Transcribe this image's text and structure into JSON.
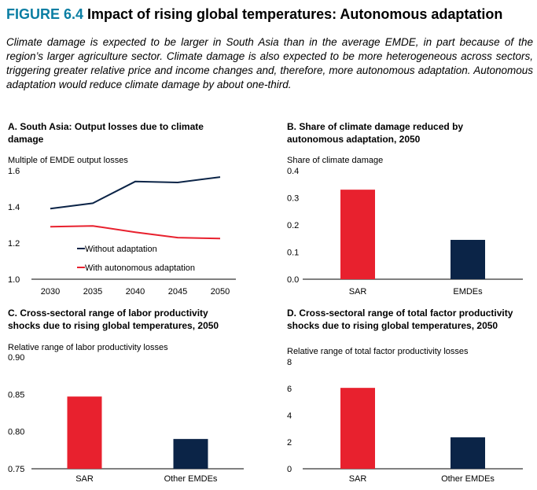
{
  "figure": {
    "number": "FIGURE 6.4",
    "title": " Impact of rising global temperatures: Autonomous adaptation",
    "subtitle": "Climate damage is expected to be larger in South Asia than in the average EMDE, in part because of the region’s larger agriculture sector. Climate damage is also expected to be more heterogeneous across sectors, triggering greater relative price and income changes and, therefore, more autonomous adaptation. Autonomous adaptation would reduce climate damage by about one-third."
  },
  "colors": {
    "navy": "#0b2447",
    "red": "#e8212e",
    "axis": "#000000"
  },
  "chart_data": [
    {
      "id": "A",
      "type": "line",
      "title_lines": [
        "A. South Asia: Output losses due to climate",
        "damage"
      ],
      "ylabel": "Multiple of EMDE output losses",
      "x": [
        "2030",
        "2035",
        "2040",
        "2045",
        "2050"
      ],
      "ylim": [
        1.0,
        1.6
      ],
      "yticks": [
        "1.0",
        "1.2",
        "1.4",
        "1.6"
      ],
      "series": [
        {
          "name": "Without adaptation",
          "color": "#0b2447",
          "values": [
            1.39,
            1.42,
            1.54,
            1.535,
            1.565
          ]
        },
        {
          "name": "With autonomous adaptation",
          "color": "#e8212e",
          "values": [
            1.29,
            1.295,
            1.26,
            1.23,
            1.225
          ]
        }
      ],
      "legend": "bottom-center",
      "grid": false
    },
    {
      "id": "B",
      "type": "bar",
      "title_lines": [
        "B. Share of climate damage reduced by",
        "autonomous adaptation, 2050"
      ],
      "ylabel": "Share of climate damage",
      "categories": [
        "SAR",
        "EMDEs"
      ],
      "values": [
        0.33,
        0.145
      ],
      "colors": [
        "#e8212e",
        "#0b2447"
      ],
      "ylim": [
        0,
        0.4
      ],
      "yticks": [
        "0.0",
        "0.1",
        "0.2",
        "0.3",
        "0.4"
      ],
      "grid": false
    },
    {
      "id": "C",
      "type": "bar",
      "title_lines": [
        "C. Cross-sectoral range of labor productivity",
        "shocks due to rising global temperatures, 2050"
      ],
      "ylabel": "Relative range of labor productivity losses",
      "categories": [
        "SAR",
        "Other EMDEs"
      ],
      "values": [
        0.847,
        0.79
      ],
      "colors": [
        "#e8212e",
        "#0b2447"
      ],
      "ylim": [
        0.75,
        0.9
      ],
      "yticks": [
        "0.75",
        "0.80",
        "0.85",
        "0.90"
      ],
      "grid": false
    },
    {
      "id": "D",
      "type": "bar",
      "title_lines": [
        "D. Cross-sectoral range of total factor productivity",
        "shocks due to rising global temperatures, 2050"
      ],
      "ylabel": "Relative range of total factor productivity losses",
      "categories": [
        "SAR",
        "Other EMDEs"
      ],
      "values": [
        6.05,
        2.35
      ],
      "colors": [
        "#e8212e",
        "#0b2447"
      ],
      "ylim": [
        0,
        8
      ],
      "yticks": [
        "0",
        "2",
        "4",
        "6",
        "8"
      ],
      "grid": false
    }
  ]
}
